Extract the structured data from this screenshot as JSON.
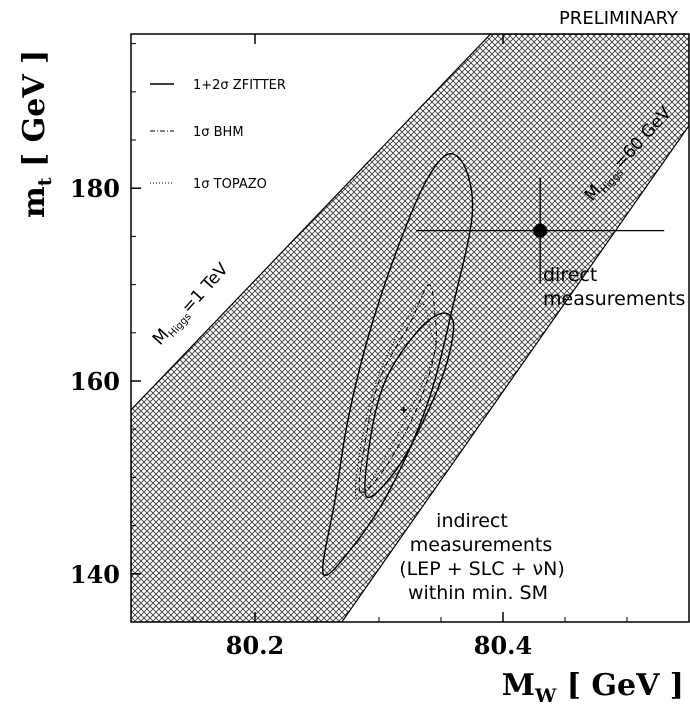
{
  "header": {
    "preliminary": "PRELIMINARY"
  },
  "chart_data": {
    "type": "scatter",
    "x_axis": {
      "label": "M",
      "label_sub": "W",
      "unit": "[ GeV ]",
      "range": [
        80.1,
        80.55
      ],
      "ticks": [
        80.2,
        80.4
      ],
      "tick_labels": [
        "80.2",
        "80.4"
      ]
    },
    "y_axis": {
      "label": "m",
      "label_sub": "t",
      "unit": "[ GeV ]",
      "range": [
        135,
        196
      ],
      "ticks": [
        140,
        160,
        180
      ],
      "tick_labels": [
        "140",
        "160",
        "180"
      ]
    },
    "legend": {
      "placement": "top-left",
      "entries": [
        {
          "label": "1+2σ ZFITTER",
          "style": "solid"
        },
        {
          "label": "1σ BHM",
          "style": "dash-dot"
        },
        {
          "label": "1σ TOPAZO",
          "style": "dotted"
        }
      ]
    },
    "band": {
      "fill": "cross-hatch",
      "lower_edge": [
        [
          80.27,
          135
        ],
        [
          80.55,
          186.5
        ]
      ],
      "upper_edge": [
        [
          80.1,
          157
        ],
        [
          80.39,
          196
        ]
      ],
      "labels": [
        {
          "main": "M",
          "sub": "Higgs",
          "rest": "=1 TeV"
        },
        {
          "main": "M",
          "sub": "Higgs",
          "rest": "=60 GeV"
        }
      ]
    },
    "direct_measurement": {
      "label_lines": [
        "direct",
        "measurements"
      ],
      "mw": 80.43,
      "mw_err": 0.1,
      "mt": 175.6,
      "mt_err": 5.5
    },
    "indirect_measurement": {
      "label_lines": [
        "indirect",
        "measurements",
        "(LEP + SLC + νN)",
        "within min. SM"
      ],
      "central": {
        "mw": 80.32,
        "mt": 157
      },
      "contour_2sigma": [
        [
          80.255,
          140
        ],
        [
          80.265,
          148
        ],
        [
          80.275,
          156
        ],
        [
          80.29,
          164
        ],
        [
          80.31,
          172
        ],
        [
          80.335,
          180
        ],
        [
          80.355,
          183.5
        ],
        [
          80.37,
          182
        ],
        [
          80.375,
          177
        ],
        [
          80.36,
          168
        ],
        [
          80.34,
          158
        ],
        [
          80.31,
          149
        ],
        [
          80.28,
          143
        ],
        [
          80.255,
          140
        ]
      ],
      "contour_1sigma": [
        [
          80.29,
          148
        ],
        [
          80.293,
          154
        ],
        [
          80.305,
          160
        ],
        [
          80.33,
          165
        ],
        [
          80.35,
          167
        ],
        [
          80.36,
          166
        ],
        [
          80.355,
          162
        ],
        [
          80.34,
          157
        ],
        [
          80.315,
          151
        ],
        [
          80.29,
          148
        ]
      ],
      "contour_bhm": [
        [
          80.285,
          148.5
        ],
        [
          80.288,
          153
        ],
        [
          80.3,
          160
        ],
        [
          80.325,
          166
        ],
        [
          80.34,
          170
        ],
        [
          80.345,
          167
        ],
        [
          80.345,
          163
        ],
        [
          80.33,
          157
        ],
        [
          80.305,
          151
        ],
        [
          80.285,
          148.5
        ]
      ],
      "contour_topazo": [
        [
          80.282,
          147.8
        ],
        [
          80.285,
          153
        ],
        [
          80.298,
          160
        ],
        [
          80.32,
          166
        ],
        [
          80.335,
          168
        ],
        [
          80.342,
          165
        ],
        [
          80.345,
          163
        ],
        [
          80.325,
          157
        ],
        [
          80.3,
          151
        ],
        [
          80.282,
          147.8
        ]
      ]
    }
  }
}
